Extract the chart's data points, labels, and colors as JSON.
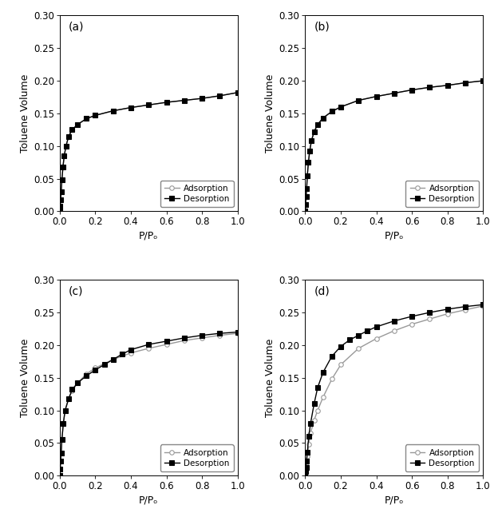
{
  "panels": [
    "(a)",
    "(b)",
    "(c)",
    "(d)"
  ],
  "xlabel": "P/Pₒ",
  "ylabel": "Toluene Volume",
  "ylim": [
    0.0,
    0.3
  ],
  "yticks": [
    0.0,
    0.05,
    0.1,
    0.15,
    0.2,
    0.25,
    0.3
  ],
  "xlim": [
    0.0,
    1.0
  ],
  "xticks": [
    0.0,
    0.2,
    0.4,
    0.6,
    0.8,
    1.0
  ],
  "adsorption_color": "#999999",
  "desorption_color": "#000000",
  "background": "#ffffff",
  "panels_data": {
    "a": {
      "ads_x": [
        0.0,
        0.002,
        0.005,
        0.008,
        0.012,
        0.018,
        0.025,
        0.035,
        0.05,
        0.07,
        0.1,
        0.15,
        0.2,
        0.3,
        0.4,
        0.5,
        0.6,
        0.7,
        0.8,
        0.9,
        1.0
      ],
      "ads_y": [
        0.0,
        0.008,
        0.018,
        0.03,
        0.048,
        0.068,
        0.085,
        0.1,
        0.115,
        0.125,
        0.133,
        0.142,
        0.147,
        0.154,
        0.159,
        0.163,
        0.167,
        0.17,
        0.173,
        0.177,
        0.182
      ],
      "des_x": [
        0.0,
        0.002,
        0.005,
        0.008,
        0.012,
        0.018,
        0.025,
        0.035,
        0.05,
        0.07,
        0.1,
        0.15,
        0.2,
        0.3,
        0.4,
        0.5,
        0.6,
        0.7,
        0.8,
        0.9,
        1.0
      ],
      "des_y": [
        0.0,
        0.008,
        0.018,
        0.03,
        0.048,
        0.068,
        0.085,
        0.1,
        0.115,
        0.125,
        0.133,
        0.142,
        0.147,
        0.154,
        0.159,
        0.163,
        0.167,
        0.17,
        0.173,
        0.177,
        0.182
      ]
    },
    "b": {
      "ads_x": [
        0.0,
        0.002,
        0.005,
        0.008,
        0.012,
        0.018,
        0.025,
        0.035,
        0.05,
        0.07,
        0.1,
        0.15,
        0.2,
        0.3,
        0.4,
        0.5,
        0.6,
        0.7,
        0.8,
        0.9,
        1.0
      ],
      "ads_y": [
        0.0,
        0.01,
        0.022,
        0.035,
        0.055,
        0.075,
        0.092,
        0.108,
        0.122,
        0.133,
        0.143,
        0.153,
        0.16,
        0.17,
        0.176,
        0.181,
        0.186,
        0.19,
        0.193,
        0.197,
        0.2
      ],
      "des_x": [
        0.0,
        0.002,
        0.005,
        0.008,
        0.012,
        0.018,
        0.025,
        0.035,
        0.05,
        0.07,
        0.1,
        0.15,
        0.2,
        0.3,
        0.4,
        0.5,
        0.6,
        0.7,
        0.8,
        0.9,
        1.0
      ],
      "des_y": [
        0.0,
        0.01,
        0.022,
        0.035,
        0.055,
        0.075,
        0.092,
        0.108,
        0.122,
        0.133,
        0.143,
        0.153,
        0.16,
        0.17,
        0.176,
        0.181,
        0.186,
        0.19,
        0.193,
        0.197,
        0.2
      ]
    },
    "c": {
      "ads_x": [
        0.0,
        0.002,
        0.005,
        0.008,
        0.012,
        0.02,
        0.03,
        0.05,
        0.07,
        0.1,
        0.15,
        0.2,
        0.3,
        0.4,
        0.5,
        0.6,
        0.7,
        0.8,
        0.9,
        1.0
      ],
      "ads_y": [
        0.0,
        0.01,
        0.022,
        0.035,
        0.055,
        0.08,
        0.1,
        0.118,
        0.13,
        0.142,
        0.156,
        0.165,
        0.178,
        0.188,
        0.195,
        0.201,
        0.207,
        0.211,
        0.215,
        0.218
      ],
      "des_x": [
        0.0,
        0.002,
        0.005,
        0.008,
        0.012,
        0.02,
        0.03,
        0.05,
        0.07,
        0.1,
        0.15,
        0.2,
        0.25,
        0.3,
        0.35,
        0.4,
        0.5,
        0.6,
        0.7,
        0.8,
        0.9,
        1.0
      ],
      "des_y": [
        0.0,
        0.01,
        0.022,
        0.035,
        0.055,
        0.08,
        0.1,
        0.118,
        0.132,
        0.142,
        0.153,
        0.162,
        0.17,
        0.178,
        0.186,
        0.193,
        0.201,
        0.206,
        0.211,
        0.215,
        0.218,
        0.22
      ]
    },
    "d": {
      "ads_x": [
        0.0,
        0.002,
        0.005,
        0.008,
        0.012,
        0.02,
        0.03,
        0.05,
        0.07,
        0.1,
        0.15,
        0.2,
        0.3,
        0.4,
        0.5,
        0.6,
        0.7,
        0.8,
        0.9,
        1.0
      ],
      "ads_y": [
        0.0,
        0.006,
        0.012,
        0.02,
        0.03,
        0.048,
        0.065,
        0.085,
        0.1,
        0.12,
        0.148,
        0.17,
        0.195,
        0.21,
        0.222,
        0.232,
        0.24,
        0.248,
        0.254,
        0.26
      ],
      "des_x": [
        0.0,
        0.002,
        0.005,
        0.008,
        0.012,
        0.02,
        0.03,
        0.05,
        0.07,
        0.1,
        0.15,
        0.2,
        0.25,
        0.3,
        0.35,
        0.4,
        0.5,
        0.6,
        0.7,
        0.8,
        0.9,
        1.0
      ],
      "des_y": [
        0.0,
        0.006,
        0.012,
        0.022,
        0.036,
        0.06,
        0.08,
        0.11,
        0.135,
        0.158,
        0.183,
        0.198,
        0.208,
        0.215,
        0.222,
        0.228,
        0.237,
        0.244,
        0.25,
        0.255,
        0.259,
        0.262
      ]
    }
  }
}
